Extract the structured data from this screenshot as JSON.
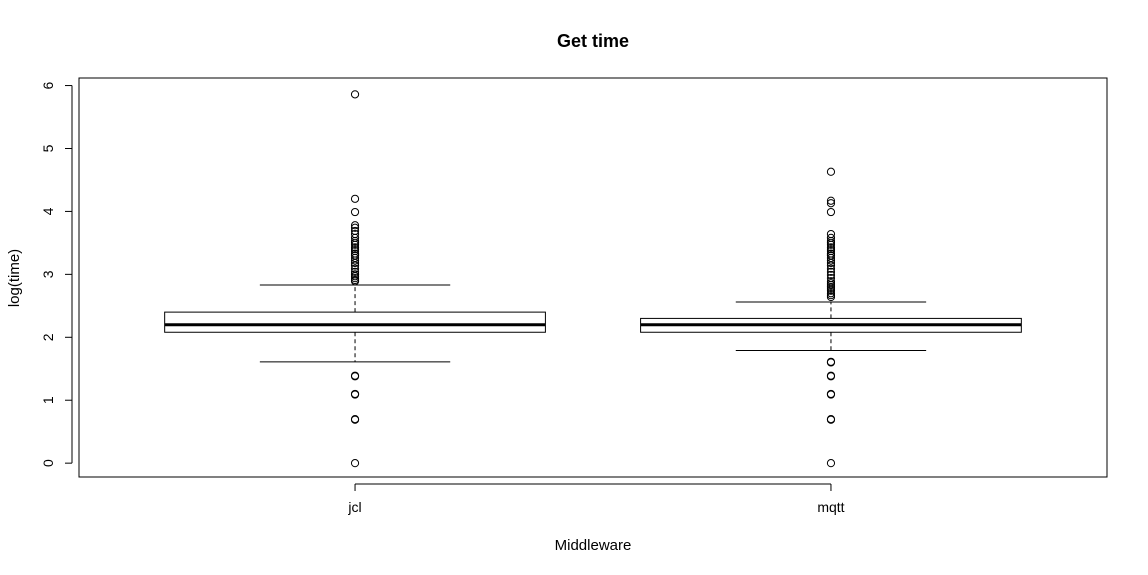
{
  "chart_data": {
    "type": "boxplot",
    "title": "Get time",
    "xlabel": "Middleware",
    "ylabel": "log(time)",
    "ylim": [
      -0.22,
      6.12
    ],
    "yticks": [
      0,
      1,
      2,
      3,
      4,
      5,
      6
    ],
    "grid": false,
    "categories": [
      "jcl",
      "mqtt"
    ],
    "boxes": [
      {
        "name": "jcl",
        "whisker_low": 1.61,
        "q1": 2.08,
        "median": 2.2,
        "q3": 2.4,
        "whisker_high": 2.83,
        "outliers": [
          0.0,
          0.69,
          0.7,
          1.09,
          1.1,
          1.38,
          1.39,
          2.89,
          2.91,
          2.94,
          2.97,
          3.0,
          3.04,
          3.09,
          3.14,
          3.18,
          3.22,
          3.26,
          3.3,
          3.33,
          3.37,
          3.4,
          3.43,
          3.47,
          3.5,
          3.53,
          3.58,
          3.64,
          3.69,
          3.74,
          3.78,
          3.99,
          4.2,
          5.86
        ]
      },
      {
        "name": "mqtt",
        "whisker_low": 1.79,
        "q1": 2.08,
        "median": 2.2,
        "q3": 2.3,
        "whisker_high": 2.56,
        "outliers": [
          0.0,
          0.69,
          0.7,
          1.09,
          1.1,
          1.38,
          1.39,
          1.6,
          1.61,
          2.64,
          2.67,
          2.7,
          2.74,
          2.77,
          2.8,
          2.83,
          2.86,
          2.89,
          2.94,
          2.99,
          3.04,
          3.09,
          3.14,
          3.18,
          3.22,
          3.26,
          3.3,
          3.33,
          3.37,
          3.4,
          3.43,
          3.47,
          3.5,
          3.53,
          3.58,
          3.64,
          3.99,
          4.13,
          4.17,
          4.63
        ]
      }
    ]
  }
}
